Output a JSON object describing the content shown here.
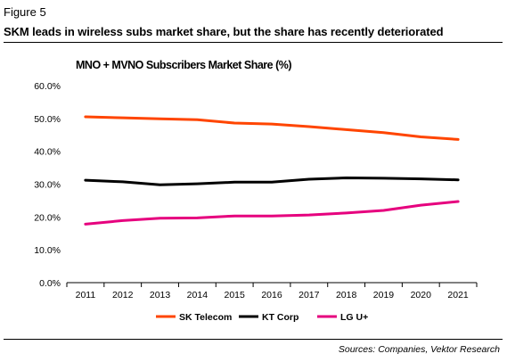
{
  "figure": {
    "label": "Figure 5",
    "title": "SKM leads in wireless subs market share, but the share has recently deteriorated",
    "source": "Sources: Companies, Vektor Research"
  },
  "chart_data": {
    "type": "line",
    "title": "MNO + MVNO Subscribers Market Share (%)",
    "xlabel": "",
    "ylabel": "",
    "categories": [
      "2011",
      "2012",
      "2013",
      "2014",
      "2015",
      "2016",
      "2017",
      "2018",
      "2019",
      "2020",
      "2021"
    ],
    "ylim": [
      0,
      60
    ],
    "yticks": [
      0,
      10,
      20,
      30,
      40,
      50,
      60
    ],
    "ytick_labels": [
      "0.0%",
      "10.0%",
      "20.0%",
      "30.0%",
      "40.0%",
      "50.0%",
      "60.0%"
    ],
    "grid": false,
    "legend_position": "bottom",
    "series": [
      {
        "name": "SK Telecom",
        "color": "#ff4500",
        "values": [
          50.5,
          50.2,
          49.9,
          49.6,
          48.6,
          48.3,
          47.5,
          46.6,
          45.7,
          44.4,
          43.6
        ]
      },
      {
        "name": "KT Corp",
        "color": "#000000",
        "values": [
          31.2,
          30.7,
          29.8,
          30.1,
          30.6,
          30.6,
          31.5,
          31.9,
          31.8,
          31.6,
          31.3
        ]
      },
      {
        "name": "LG U+",
        "color": "#e6007e",
        "values": [
          17.8,
          18.9,
          19.6,
          19.7,
          20.3,
          20.3,
          20.6,
          21.2,
          22.0,
          23.6,
          24.7
        ]
      }
    ]
  }
}
